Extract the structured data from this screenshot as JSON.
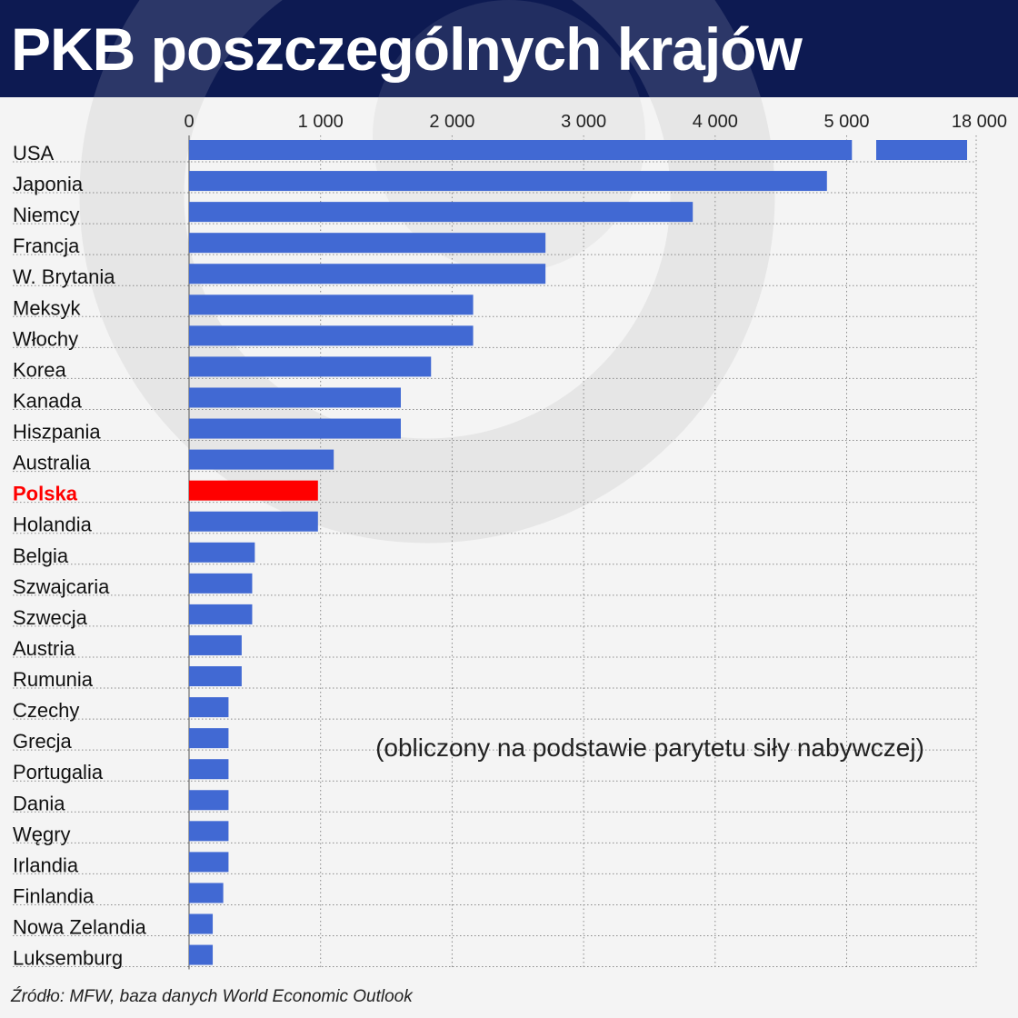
{
  "title": "PKB poszczególnych krajów",
  "source": "Źródło: MFW, baza danych World Economic Outlook",
  "colors": {
    "header_bg": "#0d1a52",
    "bar": "#4169d3",
    "highlight": "#ff0000",
    "background": "#f4f4f4"
  },
  "chart_data": {
    "type": "bar",
    "orientation": "horizontal",
    "annotation": "(obliczony na podstawie parytetu siły nabywczej)",
    "x_ticks": [
      "0",
      "1 000",
      "2 000",
      "3  000",
      "4 000",
      "5 000",
      "18 000"
    ],
    "xlim": [
      0,
      5000
    ],
    "axis_break": {
      "after": 5000,
      "resumes_at_label": "18 000"
    },
    "grid": "dotted",
    "highlight_category": "Polska",
    "categories": [
      "USA",
      "Japonia",
      "Niemcy",
      "Francja",
      "W. Brytania",
      "Meksyk",
      "Włochy",
      "Korea",
      "Kanada",
      "Hiszpania",
      "Australia",
      "Polska",
      "Holandia",
      "Belgia",
      "Szwajcaria",
      "Szwecja",
      "Austria",
      "Rumunia",
      "Czechy",
      "Grecja",
      "Portugalia",
      "Dania",
      "Węgry",
      "Irlandia",
      "Finlandia",
      "Nowa Zelandia",
      "Luksemburg"
    ],
    "values": [
      18000,
      4850,
      3830,
      2710,
      2710,
      2160,
      2160,
      1840,
      1610,
      1610,
      1100,
      980,
      980,
      500,
      480,
      480,
      400,
      400,
      300,
      300,
      300,
      300,
      300,
      300,
      260,
      180,
      180
    ]
  }
}
